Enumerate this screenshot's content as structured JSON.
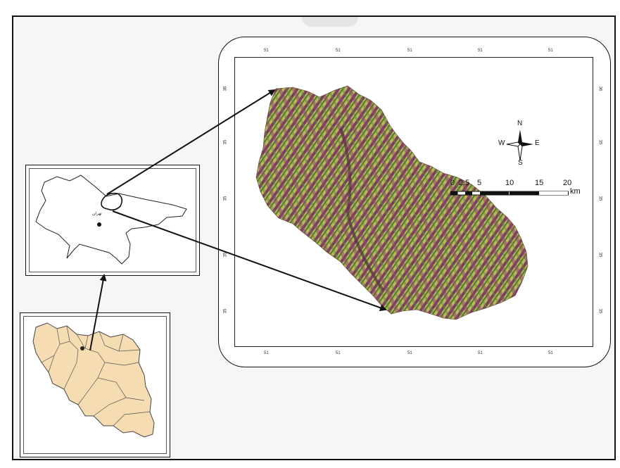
{
  "map": {
    "inset_tehran_label": "تهران",
    "compass": {
      "n": "N",
      "s": "S",
      "e": "E",
      "w": "W"
    },
    "scale": {
      "labels": [
        "0",
        "2.5",
        "5",
        "10",
        "15",
        "20"
      ],
      "unit": "km"
    },
    "graticule": {
      "top_labels": [
        "51",
        "51",
        "51",
        "51",
        "51"
      ],
      "bottom_labels": [
        "51",
        "51",
        "51",
        "51",
        "51"
      ],
      "left_labels": [
        "36",
        "35",
        "35",
        "35",
        "35"
      ],
      "right_labels": [
        "36",
        "35",
        "35",
        "35",
        "35"
      ]
    },
    "colors": {
      "terrain_light": "#b9b65c",
      "terrain_dark": "#7b3f60",
      "terrain_green": "#4f7a2e",
      "iran_fill": "#f5dcb2"
    }
  }
}
